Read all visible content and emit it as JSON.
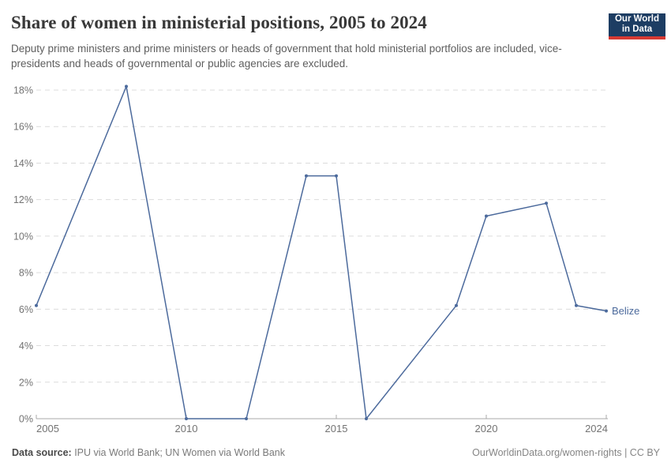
{
  "header": {
    "title": "Share of women in ministerial positions, 2005 to 2024",
    "subtitle": "Deputy prime ministers and prime ministers or heads of government that hold ministerial portfolios are included, vice-presidents and heads of governmental or public agencies are excluded.",
    "logo": {
      "line1": "Our World",
      "line2": "in Data",
      "bg_color": "#1d3d63",
      "bar_color": "#d73a33"
    }
  },
  "chart_data": {
    "type": "line",
    "title": "Share of women in ministerial positions, 2005 to 2024",
    "entity_label": "Belize",
    "x": [
      2005,
      2008,
      2010,
      2012,
      2014,
      2015,
      2016,
      2019,
      2020,
      2022,
      2023,
      2024
    ],
    "series": [
      {
        "name": "Belize",
        "values": [
          6.2,
          18.2,
          0,
          0,
          13.3,
          13.3,
          0,
          6.2,
          11.1,
          11.8,
          6.2,
          5.9
        ],
        "color": "#4c6a9c"
      }
    ],
    "xlabel": "",
    "ylabel": "",
    "xlim": [
      2005,
      2024
    ],
    "ylim": [
      0,
      18
    ],
    "yticks": [
      0,
      2,
      4,
      6,
      8,
      10,
      12,
      14,
      16,
      18
    ],
    "ytick_labels": [
      "0%",
      "2%",
      "4%",
      "6%",
      "8%",
      "10%",
      "12%",
      "14%",
      "16%",
      "18%"
    ],
    "xticks": [
      2005,
      2010,
      2015,
      2020,
      2024
    ],
    "xtick_labels": [
      "2005",
      "2010",
      "2015",
      "2020",
      "2024"
    ],
    "grid": "horizontal-dashed",
    "markers": true,
    "legend": "entity-label-at-line-end",
    "grid_color": "#dcdcdc",
    "axis_color": "#a8a8a8",
    "tick_label_color": "#737373"
  },
  "footer": {
    "source_label": "Data source:",
    "source_text": " IPU via World Bank; UN Women via World Bank",
    "link_text": "OurWorldinData.org/women-rights",
    "separator": " | ",
    "license_text": "CC BY"
  }
}
